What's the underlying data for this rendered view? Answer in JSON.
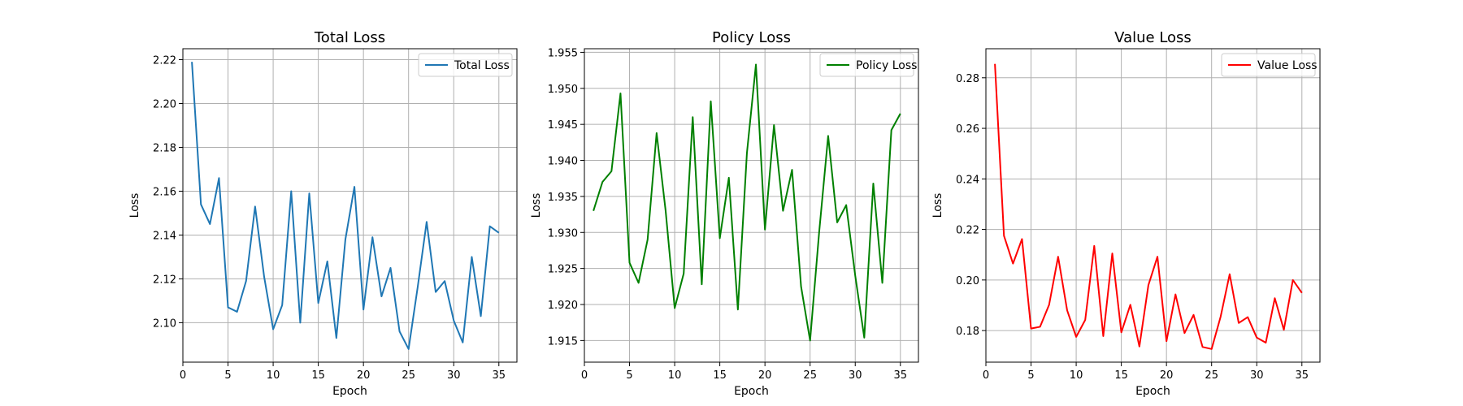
{
  "chart_data": [
    {
      "type": "line",
      "title": "Total Loss",
      "xlabel": "Epoch",
      "ylabel": "Loss",
      "xlim": [
        0,
        37
      ],
      "ylim": [
        2.082,
        2.225
      ],
      "xticks": [
        0,
        5,
        10,
        15,
        20,
        25,
        30,
        35
      ],
      "yticks": [
        2.1,
        2.12,
        2.14,
        2.16,
        2.18,
        2.2,
        2.22
      ],
      "ytick_decimals": 2,
      "grid": true,
      "legend_position": "top-right",
      "series": [
        {
          "name": "Total Loss",
          "color": "#1f77b4",
          "x": [
            1,
            2,
            3,
            4,
            5,
            6,
            7,
            8,
            9,
            10,
            11,
            12,
            13,
            14,
            15,
            16,
            17,
            18,
            19,
            20,
            21,
            22,
            23,
            24,
            25,
            26,
            27,
            28,
            29,
            30,
            31,
            32,
            33,
            34,
            35
          ],
          "y": [
            2.219,
            2.154,
            2.145,
            2.166,
            2.107,
            2.105,
            2.119,
            2.153,
            2.121,
            2.097,
            2.108,
            2.16,
            2.1,
            2.159,
            2.109,
            2.128,
            2.093,
            2.138,
            2.162,
            2.106,
            2.139,
            2.112,
            2.125,
            2.096,
            2.088,
            2.116,
            2.146,
            2.114,
            2.119,
            2.101,
            2.091,
            2.13,
            2.103,
            2.144,
            2.141
          ]
        }
      ]
    },
    {
      "type": "line",
      "title": "Policy Loss",
      "xlabel": "Epoch",
      "ylabel": "Loss",
      "xlim": [
        0,
        37
      ],
      "ylim": [
        1.912,
        1.9555
      ],
      "xticks": [
        0,
        5,
        10,
        15,
        20,
        25,
        30,
        35
      ],
      "yticks": [
        1.915,
        1.92,
        1.925,
        1.93,
        1.935,
        1.94,
        1.945,
        1.95,
        1.955
      ],
      "ytick_decimals": 3,
      "grid": true,
      "legend_position": "top-right",
      "series": [
        {
          "name": "Policy Loss",
          "color": "#008000",
          "x": [
            1,
            2,
            3,
            4,
            5,
            6,
            7,
            8,
            9,
            10,
            11,
            12,
            13,
            14,
            15,
            16,
            17,
            18,
            19,
            20,
            21,
            22,
            23,
            24,
            25,
            26,
            27,
            28,
            29,
            30,
            31,
            32,
            33,
            34,
            35
          ],
          "y": [
            1.933,
            1.937,
            1.9385,
            1.9493,
            1.9258,
            1.923,
            1.929,
            1.9438,
            1.933,
            1.9195,
            1.9243,
            1.946,
            1.9228,
            1.9482,
            1.9292,
            1.9376,
            1.9193,
            1.941,
            1.9533,
            1.9304,
            1.9449,
            1.933,
            1.9387,
            1.9225,
            1.915,
            1.93,
            1.9434,
            1.9314,
            1.9338,
            1.924,
            1.9154,
            1.9368,
            1.923,
            1.9442,
            1.9465
          ]
        }
      ]
    },
    {
      "type": "line",
      "title": "Value Loss",
      "xlabel": "Epoch",
      "ylabel": "Loss",
      "xlim": [
        0,
        37
      ],
      "ylim": [
        0.1675,
        0.2915
      ],
      "xticks": [
        0,
        5,
        10,
        15,
        20,
        25,
        30,
        35
      ],
      "yticks": [
        0.18,
        0.2,
        0.22,
        0.24,
        0.26,
        0.28
      ],
      "ytick_decimals": 2,
      "grid": true,
      "legend_position": "top-right",
      "series": [
        {
          "name": "Value Loss",
          "color": "#ff0000",
          "x": [
            1,
            2,
            3,
            4,
            5,
            6,
            7,
            8,
            9,
            10,
            11,
            12,
            13,
            14,
            15,
            16,
            17,
            18,
            19,
            20,
            21,
            22,
            23,
            24,
            25,
            26,
            27,
            28,
            29,
            30,
            31,
            32,
            33,
            34,
            35
          ],
          "y": [
            0.2855,
            0.2175,
            0.2065,
            0.2162,
            0.1808,
            0.1815,
            0.1902,
            0.2092,
            0.188,
            0.1775,
            0.1842,
            0.2135,
            0.1778,
            0.2105,
            0.1793,
            0.1902,
            0.1737,
            0.198,
            0.2092,
            0.1758,
            0.1943,
            0.179,
            0.1862,
            0.1735,
            0.1727,
            0.1855,
            0.2023,
            0.183,
            0.1853,
            0.1772,
            0.1752,
            0.1928,
            0.1803,
            0.2,
            0.1949
          ]
        }
      ]
    }
  ]
}
